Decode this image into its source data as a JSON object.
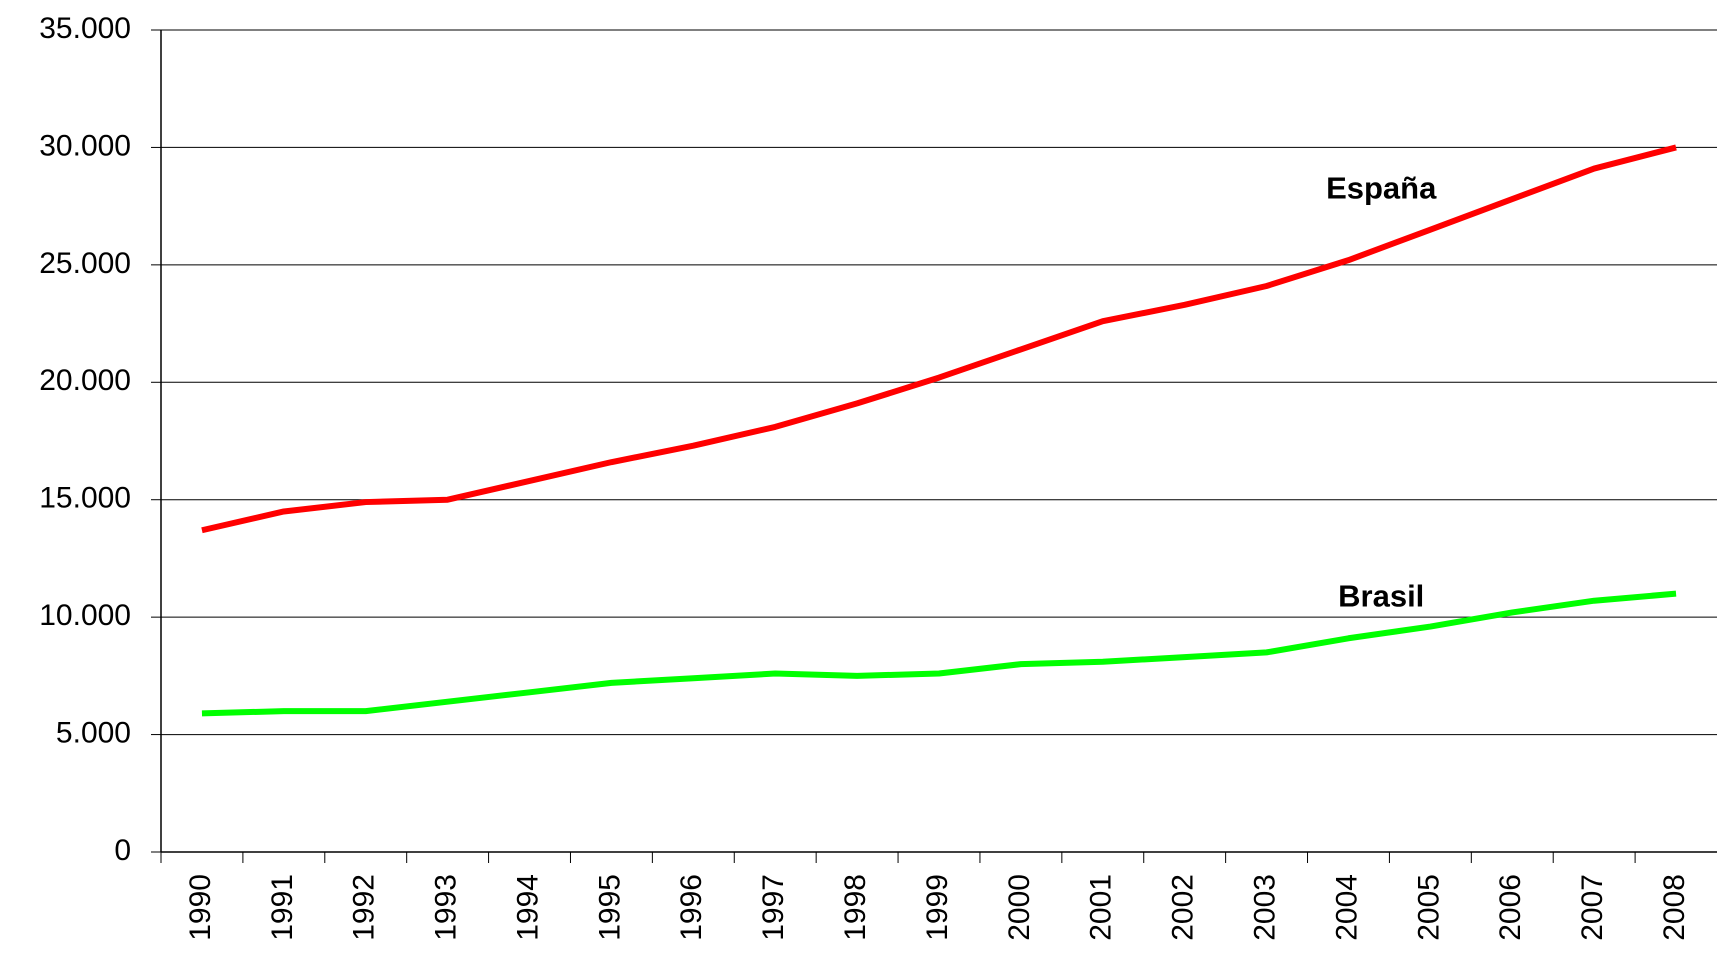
{
  "chart_data": {
    "type": "line",
    "categories": [
      "1990",
      "1991",
      "1992",
      "1993",
      "1994",
      "1995",
      "1996",
      "1997",
      "1998",
      "1999",
      "2000",
      "2001",
      "2002",
      "2003",
      "2004",
      "2005",
      "2006",
      "2007",
      "2008"
    ],
    "series": [
      {
        "name": "España",
        "color": "#ff0000",
        "values": [
          13700,
          14500,
          14900,
          15000,
          15800,
          16600,
          17300,
          18100,
          19100,
          20200,
          21400,
          22600,
          23300,
          24100,
          25200,
          26500,
          27800,
          29100,
          30000
        ]
      },
      {
        "name": "Brasil",
        "color": "#00ff00",
        "values": [
          5900,
          6000,
          6000,
          6400,
          6800,
          7200,
          7400,
          7600,
          7500,
          7600,
          8000,
          8100,
          8300,
          8500,
          9100,
          9600,
          10200,
          10700,
          11000
        ]
      }
    ],
    "ylim": [
      0,
      35000
    ],
    "yticks": [
      0,
      {
        "value": 5000,
        "label": "5.000"
      },
      {
        "value": 10000,
        "label": "10.000"
      },
      {
        "value": 15000,
        "label": "15.000"
      },
      {
        "value": 20000,
        "label": "20.000"
      },
      {
        "value": 25000,
        "label": "25.000"
      },
      {
        "value": 30000,
        "label": "30.000"
      },
      {
        "value": 35000,
        "label": "35.000"
      }
    ],
    "grid": true
  }
}
